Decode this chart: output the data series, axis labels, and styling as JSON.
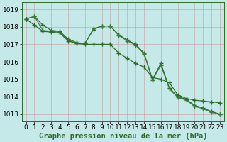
{
  "xlabel": "Graphe pression niveau de la mer (hPa)",
  "hours": [
    0,
    1,
    2,
    3,
    4,
    5,
    6,
    7,
    8,
    9,
    10,
    11,
    12,
    13,
    14,
    15,
    16,
    17,
    18,
    19,
    20,
    21,
    22,
    23
  ],
  "series1": [
    1018.45,
    1018.6,
    1018.1,
    1017.8,
    1017.75,
    1017.3,
    1017.1,
    1017.05,
    1017.85,
    1018.05,
    1018.05,
    1017.55,
    1017.25,
    1017.0,
    1016.5,
    1015.0,
    1015.9,
    1014.5,
    1014.0,
    1013.85,
    1013.5,
    1013.35,
    1013.15,
    1013.0
  ],
  "series2": [
    1018.45,
    1018.6,
    1017.8,
    1017.75,
    1017.7,
    1017.25,
    1017.05,
    1017.05,
    1017.9,
    1018.05,
    1018.05,
    1017.5,
    1017.2,
    1016.95,
    1016.45,
    1014.95,
    1015.8,
    1014.45,
    1013.95,
    1013.8,
    1013.45,
    1013.3,
    1013.1,
    1013.0
  ],
  "series3": [
    1018.45,
    1018.1,
    1017.75,
    1017.7,
    1017.65,
    1017.2,
    1017.05,
    1017.0,
    1017.0,
    1017.0,
    1017.0,
    1016.5,
    1016.2,
    1015.9,
    1015.7,
    1015.1,
    1015.0,
    1014.8,
    1014.1,
    1013.9,
    1013.8,
    1013.75,
    1013.7,
    1013.65
  ],
  "line_color_dark": "#2d6b2d",
  "line_color_mid": "#3d7a3d",
  "bg_color": "#c5e8e8",
  "grid_color": "#b0c8c8",
  "ylim_min": 1012.6,
  "ylim_max": 1019.4,
  "yticks": [
    1013,
    1014,
    1015,
    1016,
    1017,
    1018,
    1019
  ],
  "label_fontsize": 6.5,
  "xlabel_fontsize": 7.5
}
